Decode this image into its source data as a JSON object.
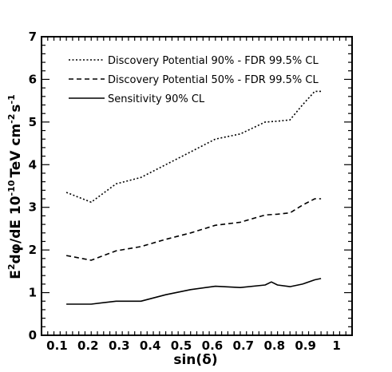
{
  "chart_data": {
    "type": "line",
    "title": "",
    "xlabel": "sin(δ)",
    "ylabel": {
      "prefix": "E",
      "exp1": "2",
      "middle": "dφ/dE 10",
      "exp2": "-10",
      "units": "TeV cm",
      "exp3": "-2",
      "s": "s",
      "exp4": "-1"
    },
    "xlim": [
      0.05,
      1.05
    ],
    "ylim": [
      0,
      7
    ],
    "xticks": [
      "0.1",
      "0.2",
      "0.3",
      "0.4",
      "0.5",
      "0.6",
      "0.7",
      "0.8",
      "0.9",
      "1"
    ],
    "yticks": [
      "0",
      "1",
      "2",
      "3",
      "4",
      "5",
      "6",
      "7"
    ],
    "grid": false,
    "legend_position": "top-left",
    "series": [
      {
        "name": "Discovery Potential 90% - FDR 99.5% CL",
        "style": "dotted",
        "color": "#000000",
        "x": [
          0.13,
          0.21,
          0.29,
          0.37,
          0.45,
          0.53,
          0.61,
          0.69,
          0.77,
          0.81,
          0.85,
          0.89,
          0.93,
          0.95
        ],
        "y": [
          3.35,
          3.12,
          3.55,
          3.7,
          4.0,
          4.3,
          4.6,
          4.72,
          5.0,
          5.02,
          5.05,
          5.4,
          5.72,
          5.72
        ]
      },
      {
        "name": "Discovery Potential 50% - FDR 99.5% CL",
        "style": "dashed",
        "color": "#000000",
        "x": [
          0.13,
          0.21,
          0.29,
          0.37,
          0.45,
          0.53,
          0.61,
          0.69,
          0.77,
          0.81,
          0.85,
          0.89,
          0.93,
          0.95
        ],
        "y": [
          1.87,
          1.76,
          1.98,
          2.08,
          2.25,
          2.4,
          2.58,
          2.65,
          2.82,
          2.84,
          2.87,
          3.05,
          3.2,
          3.2
        ]
      },
      {
        "name": "Sensitivity 90% CL",
        "style": "solid",
        "color": "#000000",
        "x": [
          0.13,
          0.21,
          0.29,
          0.37,
          0.45,
          0.53,
          0.61,
          0.69,
          0.77,
          0.79,
          0.81,
          0.85,
          0.89,
          0.93,
          0.95
        ],
        "y": [
          0.73,
          0.73,
          0.8,
          0.8,
          0.95,
          1.07,
          1.15,
          1.12,
          1.18,
          1.25,
          1.18,
          1.14,
          1.2,
          1.3,
          1.33
        ]
      }
    ]
  }
}
